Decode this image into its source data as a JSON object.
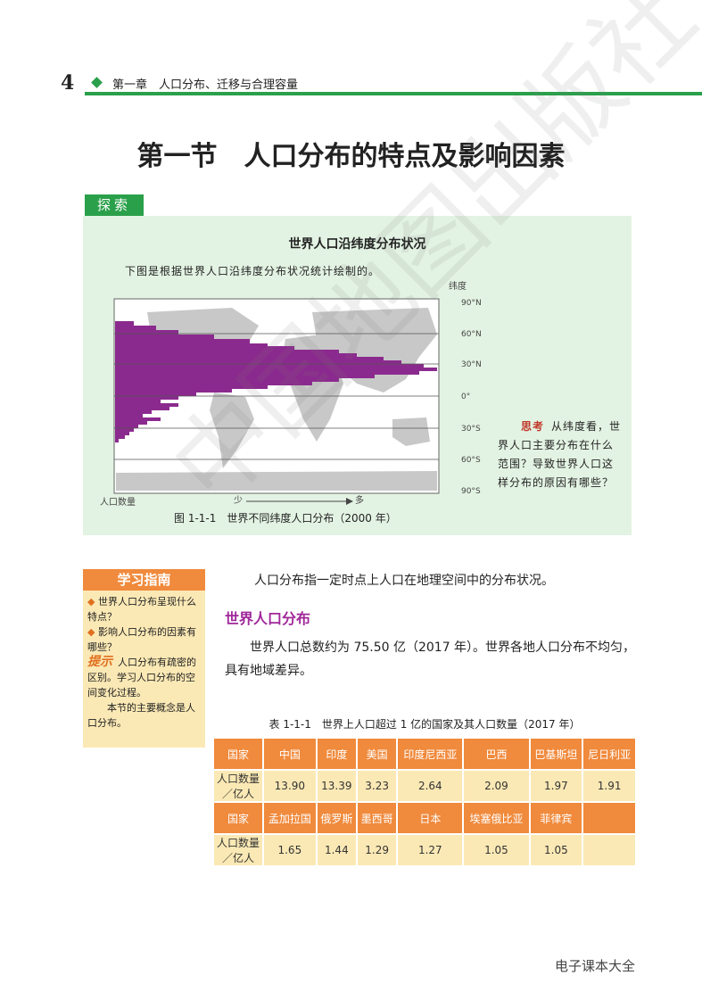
{
  "header": {
    "page_number": "4",
    "chapter": "第一章　人口分布、迁移与合理容量"
  },
  "title": "第一节　人口分布的特点及影响因素",
  "explore": {
    "tag": "探索",
    "title": "世界人口沿纬度分布状况",
    "description": "下图是根据世界人口沿纬度分布状况统计绘制的。",
    "figure": {
      "axis_label": "纬度",
      "latitudes": [
        "90°N",
        "60°N",
        "30°N",
        "0°",
        "30°S",
        "60°S",
        "90°S"
      ],
      "population_label": "人口数量",
      "less": "少",
      "more": "多",
      "caption": "图 1-1-1　世界不同纬度人口分布（2000 年）"
    },
    "think": {
      "label": "思考",
      "text": "从纬度看，世界人口主要分布在什么范围？导致世界人口这样分布的原因有哪些？"
    }
  },
  "guide": {
    "title": "学习指南",
    "items": [
      "世界人口分布呈现什么特点？",
      "影响人口分布的因素有哪些？"
    ],
    "tip_label": "提示",
    "tip": "人口分布有疏密的区别。学习人口分布的空间变化过程。",
    "concept": "本节的主要概念是人口分布。"
  },
  "body": {
    "intro": "人口分布指一定时点上人口在地理空间中的分布状况。",
    "heading": "世界人口分布",
    "paragraph": "世界人口总数约为 75.50 亿（2017 年）。世界各地人口分布不均匀，具有地域差异。"
  },
  "table": {
    "caption": "表 1-1-1　世界上人口超过 1 亿的国家及其人口数量（2017 年）",
    "blocks": [
      {
        "header": [
          "国家",
          "中国",
          "印度",
          "美国",
          "印度尼西亚",
          "巴西",
          "巴基斯坦",
          "尼日利亚"
        ],
        "values": [
          "人口数量／亿人",
          "13.90",
          "13.39",
          "3.23",
          "2.64",
          "2.09",
          "1.97",
          "1.91"
        ]
      },
      {
        "header": [
          "国家",
          "孟加拉国",
          "俄罗斯",
          "墨西哥",
          "日本",
          "埃塞俄比亚",
          "菲律宾"
        ],
        "values": [
          "人口数量／亿人",
          "1.65",
          "1.44",
          "1.29",
          "1.27",
          "1.05",
          "1.05"
        ]
      }
    ]
  },
  "watermark": "中国地图出版社",
  "footer": "电子课本大全"
}
